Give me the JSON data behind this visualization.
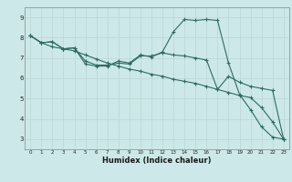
{
  "xlabel": "Humidex (Indice chaleur)",
  "background_color": "#cce8e8",
  "grid_color": "#c0d8d8",
  "line_color": "#2d6b62",
  "xlim": [
    -0.5,
    23.5
  ],
  "ylim": [
    2.5,
    9.5
  ],
  "xticks": [
    0,
    1,
    2,
    3,
    4,
    5,
    6,
    7,
    8,
    9,
    10,
    11,
    12,
    13,
    14,
    15,
    16,
    17,
    18,
    19,
    20,
    21,
    22,
    23
  ],
  "yticks": [
    3,
    4,
    5,
    6,
    7,
    8,
    9
  ],
  "line1_y": [
    8.1,
    7.75,
    7.8,
    7.45,
    7.5,
    6.7,
    6.6,
    6.6,
    6.85,
    6.75,
    7.15,
    7.05,
    7.3,
    8.3,
    8.9,
    8.85,
    8.9,
    8.85,
    6.75,
    5.2,
    4.45,
    3.6,
    3.1,
    3.0
  ],
  "line2_y": [
    8.1,
    7.75,
    7.8,
    7.45,
    7.5,
    6.85,
    6.65,
    6.65,
    6.75,
    6.7,
    7.1,
    7.1,
    7.25,
    7.15,
    7.1,
    7.0,
    6.9,
    5.45,
    6.1,
    5.8,
    5.6,
    5.5,
    5.4,
    3.0
  ],
  "line3_y": [
    8.1,
    7.75,
    7.55,
    7.45,
    7.35,
    7.15,
    6.95,
    6.75,
    6.6,
    6.45,
    6.35,
    6.2,
    6.1,
    5.95,
    5.85,
    5.75,
    5.6,
    5.45,
    5.3,
    5.15,
    5.05,
    4.55,
    3.85,
    3.0
  ],
  "xlabel_fontsize": 6,
  "tick_fontsize_x": 4,
  "tick_fontsize_y": 5,
  "linewidth": 0.8,
  "markersize": 3,
  "markeredgewidth": 0.8
}
